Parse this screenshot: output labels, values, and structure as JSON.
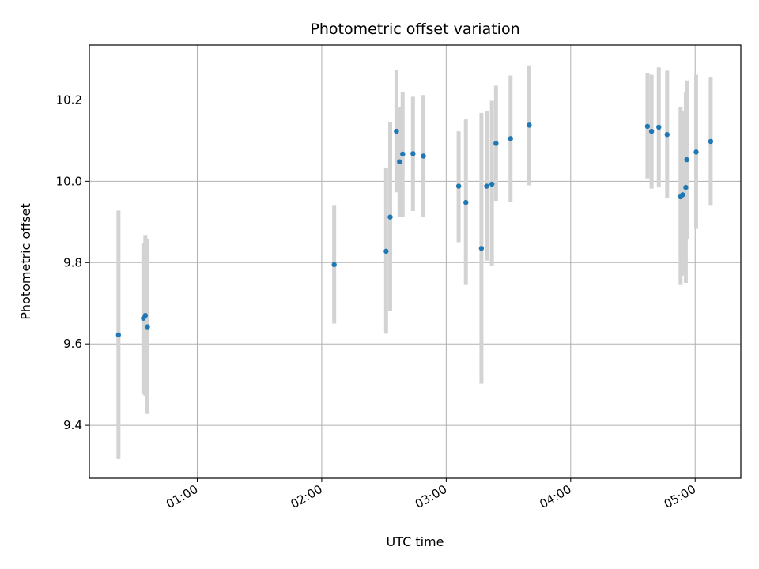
{
  "chart_data": {
    "type": "scatter",
    "title": "Photometric offset variation",
    "xlabel": "UTC time",
    "ylabel": "Photometric offset",
    "x_unit": "hours (UTC)",
    "xlim": [
      0.133,
      5.367
    ],
    "ylim": [
      9.27,
      10.335
    ],
    "x_ticks": [
      {
        "value": 1,
        "label": "01:00"
      },
      {
        "value": 2,
        "label": "02:00"
      },
      {
        "value": 3,
        "label": "03:00"
      },
      {
        "value": 4,
        "label": "04:00"
      },
      {
        "value": 5,
        "label": "05:00"
      }
    ],
    "y_ticks": [
      {
        "value": 9.4,
        "label": "9.4"
      },
      {
        "value": 9.6,
        "label": "9.6"
      },
      {
        "value": 9.8,
        "label": "9.8"
      },
      {
        "value": 10.0,
        "label": "10.0"
      },
      {
        "value": 10.2,
        "label": "10.2"
      }
    ],
    "grid": true,
    "point_color": "#1f77b4",
    "errorbar_color": "#d3d3d3",
    "points": [
      {
        "x": 0.367,
        "y": 9.622,
        "lo": 9.317,
        "hi": 9.928
      },
      {
        "x": 0.567,
        "y": 9.663,
        "lo": 9.478,
        "hi": 9.848
      },
      {
        "x": 0.583,
        "y": 9.67,
        "lo": 9.472,
        "hi": 9.868
      },
      {
        "x": 0.6,
        "y": 9.642,
        "lo": 9.428,
        "hi": 9.857
      },
      {
        "x": 2.1,
        "y": 9.795,
        "lo": 9.65,
        "hi": 9.94
      },
      {
        "x": 2.517,
        "y": 9.828,
        "lo": 9.625,
        "hi": 10.032
      },
      {
        "x": 2.55,
        "y": 9.912,
        "lo": 9.68,
        "hi": 10.145
      },
      {
        "x": 2.6,
        "y": 10.123,
        "lo": 9.973,
        "hi": 10.273
      },
      {
        "x": 2.625,
        "y": 10.048,
        "lo": 9.913,
        "hi": 10.183
      },
      {
        "x": 2.65,
        "y": 10.067,
        "lo": 9.912,
        "hi": 10.22
      },
      {
        "x": 2.733,
        "y": 10.068,
        "lo": 9.927,
        "hi": 10.208
      },
      {
        "x": 2.817,
        "y": 10.062,
        "lo": 9.912,
        "hi": 10.212
      },
      {
        "x": 3.1,
        "y": 9.988,
        "lo": 9.85,
        "hi": 10.123
      },
      {
        "x": 3.158,
        "y": 9.948,
        "lo": 9.745,
        "hi": 10.152
      },
      {
        "x": 3.283,
        "y": 9.835,
        "lo": 9.502,
        "hi": 10.168
      },
      {
        "x": 3.325,
        "y": 9.988,
        "lo": 9.805,
        "hi": 10.172
      },
      {
        "x": 3.367,
        "y": 9.993,
        "lo": 9.793,
        "hi": 10.198
      },
      {
        "x": 3.4,
        "y": 10.093,
        "lo": 9.952,
        "hi": 10.235
      },
      {
        "x": 3.517,
        "y": 10.105,
        "lo": 9.95,
        "hi": 10.26
      },
      {
        "x": 3.667,
        "y": 10.138,
        "lo": 9.99,
        "hi": 10.285
      },
      {
        "x": 4.617,
        "y": 10.135,
        "lo": 10.007,
        "hi": 10.265
      },
      {
        "x": 4.65,
        "y": 10.123,
        "lo": 9.982,
        "hi": 10.262
      },
      {
        "x": 4.708,
        "y": 10.133,
        "lo": 9.985,
        "hi": 10.28
      },
      {
        "x": 4.775,
        "y": 10.115,
        "lo": 9.958,
        "hi": 10.272
      },
      {
        "x": 4.883,
        "y": 9.962,
        "lo": 9.745,
        "hi": 10.182
      },
      {
        "x": 4.9,
        "y": 9.967,
        "lo": 9.768,
        "hi": 10.172
      },
      {
        "x": 4.925,
        "y": 9.985,
        "lo": 9.75,
        "hi": 10.218
      },
      {
        "x": 4.933,
        "y": 10.053,
        "lo": 9.858,
        "hi": 10.248
      },
      {
        "x": 5.008,
        "y": 10.072,
        "lo": 9.883,
        "hi": 10.262
      },
      {
        "x": 5.125,
        "y": 10.098,
        "lo": 9.94,
        "hi": 10.255
      }
    ]
  }
}
